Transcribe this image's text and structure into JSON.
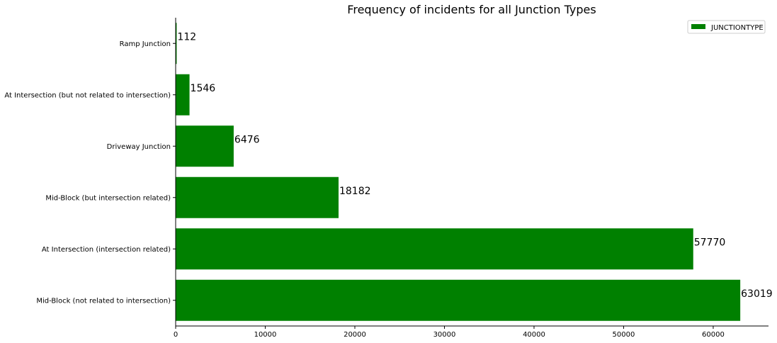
{
  "chart_data": {
    "type": "bar",
    "orientation": "horizontal",
    "title": "Frequency of incidents for all Junction Types",
    "xlabel": "",
    "ylabel": "",
    "categories": [
      "Mid-Block (not related to intersection)",
      "At Intersection (intersection related)",
      "Mid-Block (but intersection related)",
      "Driveway Junction",
      "At Intersection (but not related to intersection)",
      "Ramp Junction"
    ],
    "series": [
      {
        "name": "JUNCTIONTYPE",
        "values": [
          63019,
          57770,
          18182,
          6476,
          1546,
          112
        ],
        "color": "#008000"
      }
    ],
    "data_labels": [
      "63019",
      "57770",
      "18182",
      "6476",
      "1546",
      "112"
    ],
    "xlim": [
      0,
      66170
    ],
    "xticks": [
      0,
      10000,
      20000,
      30000,
      40000,
      50000,
      60000
    ],
    "xtick_labels": [
      "0",
      "10000",
      "20000",
      "30000",
      "40000",
      "50000",
      "60000"
    ],
    "grid": false,
    "legend": {
      "position": "top-right",
      "entries": [
        "JUNCTIONTYPE"
      ]
    },
    "category_order": "bottom-to-top"
  }
}
